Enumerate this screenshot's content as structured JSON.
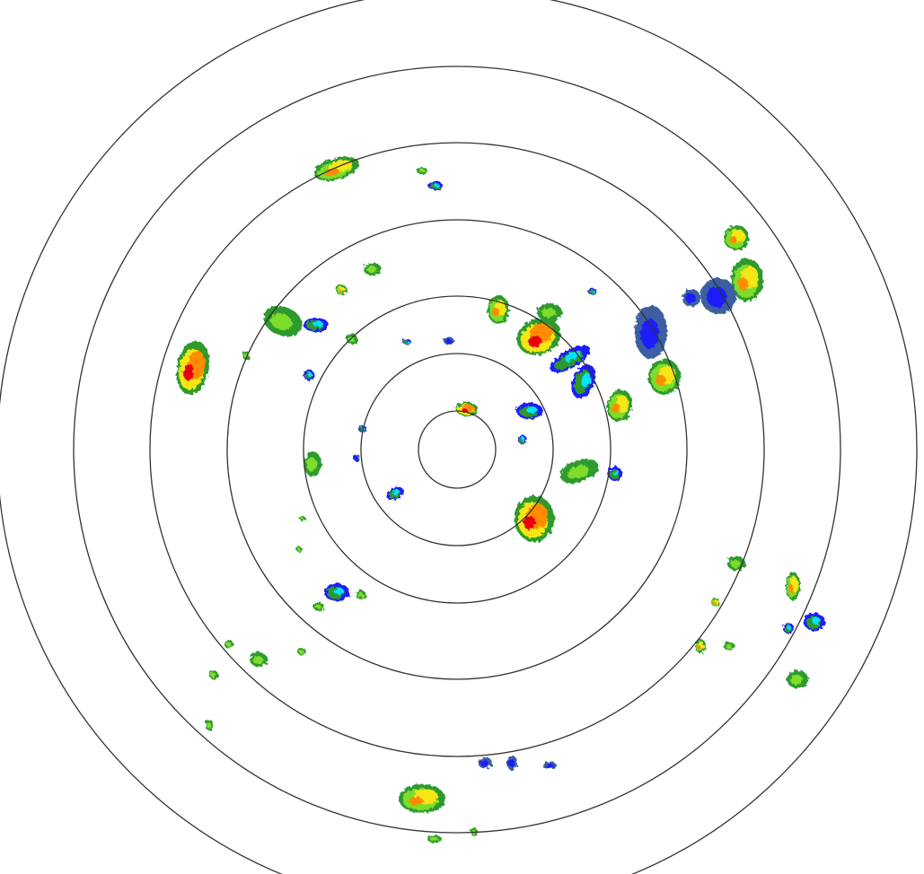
{
  "radar": {
    "ring_count": 7,
    "ring_color": "#333333",
    "background": "#ffffff",
    "reflectivity_colors": {
      "very_light": "#00e5ff",
      "light": "#1a1aff",
      "light_muted": "#3a5fa0",
      "moderate": "#2e9a2e",
      "moderate_bright": "#7fdc2a",
      "heavy": "#f5e614",
      "very_heavy": "#ff8c00",
      "intense": "#e8000b"
    }
  }
}
